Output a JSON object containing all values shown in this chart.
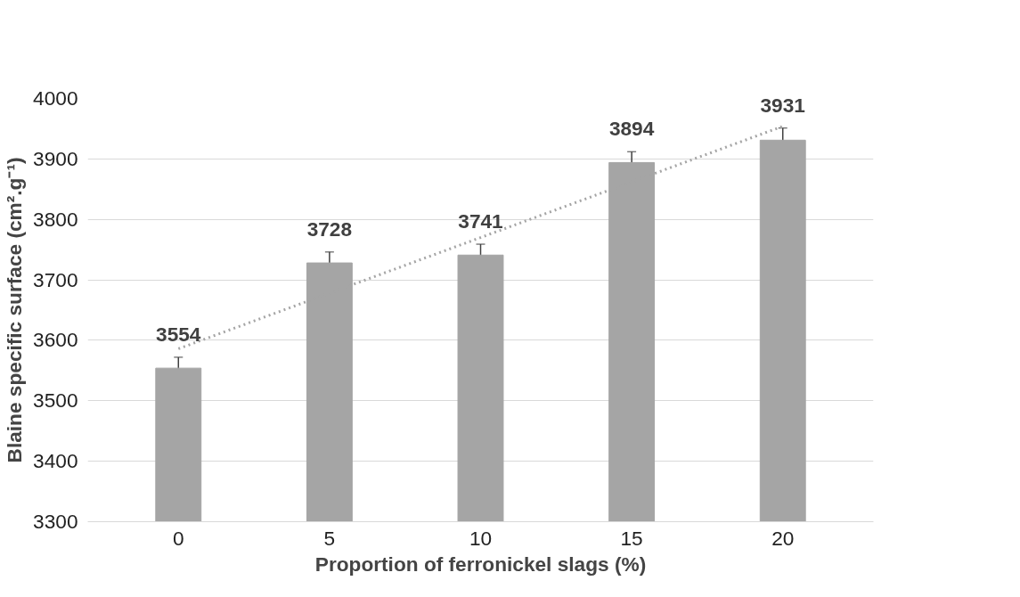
{
  "chart_data": {
    "type": "bar",
    "xlabel": "Proportion of ferronickel slags (%)",
    "ylabel": "Blaine specific surface (cm².g⁻¹)",
    "categories": [
      "0",
      "5",
      "10",
      "15",
      "20"
    ],
    "series": [
      {
        "color": "#a5a5a5",
        "values": [
          3554,
          3728,
          3741,
          3894,
          3931
        ],
        "errors": [
          18,
          18,
          18,
          18,
          20
        ],
        "value_labels": [
          "3554",
          "3728",
          "3741",
          "3894",
          "3931"
        ]
      },
      {
        "type": "line",
        "color": "#a5a5a5",
        "line_style": "dotted",
        "x": [
          "0",
          "20"
        ],
        "values": [
          3586,
          3954
        ]
      }
    ],
    "ylim": [
      3300,
      4000
    ],
    "yticks": [
      3300,
      3400,
      3500,
      3600,
      3700,
      3800,
      3900,
      4000
    ],
    "grid": "y"
  }
}
